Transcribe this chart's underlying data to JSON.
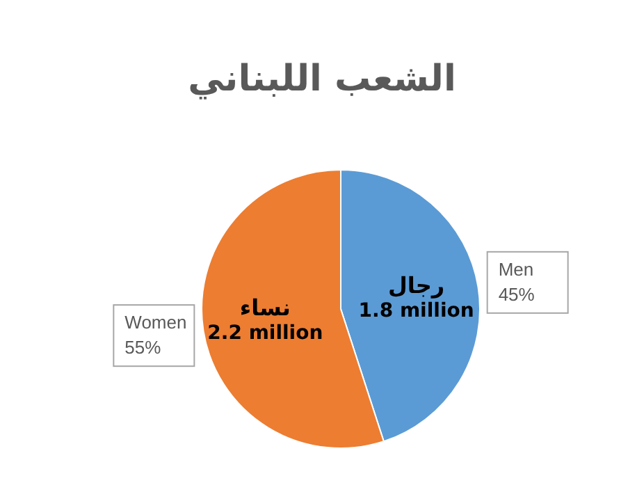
{
  "chart_data": {
    "type": "pie",
    "title": "الشعب اللبناني",
    "categories": [
      "Men",
      "Women"
    ],
    "values": [
      45,
      55
    ],
    "value_labels": [
      "45%",
      "55%"
    ],
    "colors": [
      "#5b9bd5",
      "#ed7d31"
    ],
    "annotations": [
      {
        "text": "رجال",
        "x": "Men"
      },
      {
        "text": "1.8 million",
        "x": "Men"
      },
      {
        "text": "نساء",
        "x": "Women"
      },
      {
        "text": "2.2 million",
        "x": "Women"
      }
    ],
    "legend": false
  }
}
